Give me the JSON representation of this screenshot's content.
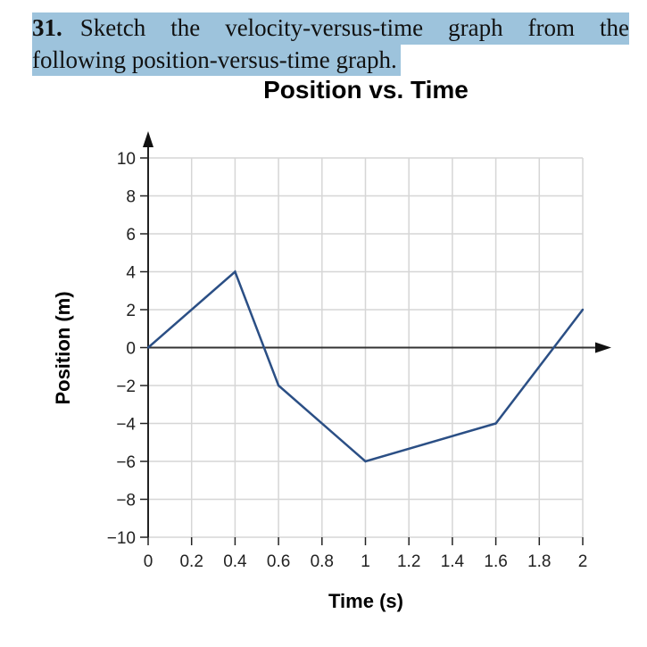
{
  "question": {
    "number": "31.",
    "words_line1": [
      "Sketch",
      "the",
      "velocity-versus-time",
      "graph",
      "from",
      "the"
    ],
    "line2": "following position-versus-time graph."
  },
  "colors": {
    "highlight": "#9dc3dc",
    "line": "#2b4f85",
    "grid": "#d6d6d6"
  },
  "chart_data": {
    "type": "line",
    "title": "Position vs. Time",
    "xlabel": "Time (s)",
    "ylabel": "Position (m)",
    "xlim": [
      0,
      2
    ],
    "ylim": [
      -10,
      10
    ],
    "xticks": [
      "0",
      "0.2",
      "0.4",
      "0.6",
      "0.8",
      "1",
      "1.2",
      "1.4",
      "1.6",
      "1.8",
      "2"
    ],
    "yticks": [
      "10",
      "8",
      "6",
      "4",
      "2",
      "0",
      "−2",
      "−4",
      "−6",
      "−8",
      "−10"
    ],
    "grid": true,
    "x": [
      0,
      0.4,
      0.6,
      1.0,
      1.6,
      2.0
    ],
    "y": [
      0,
      4,
      -2,
      -6,
      -4,
      2
    ]
  }
}
